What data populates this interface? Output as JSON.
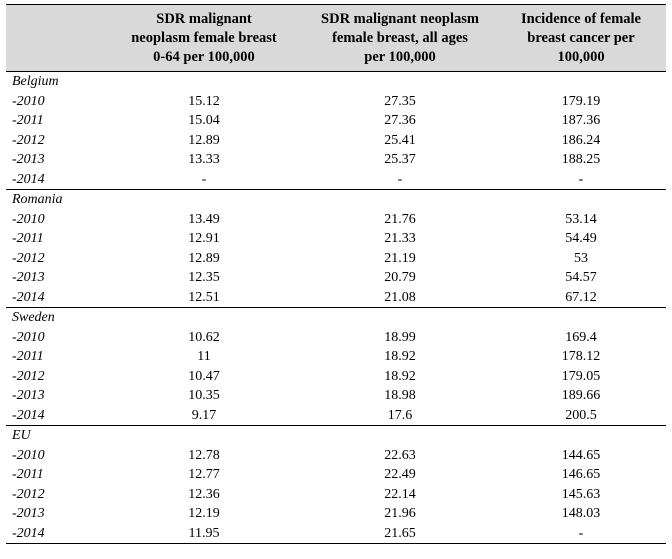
{
  "table": {
    "headers": [
      "",
      "SDR malignant neoplasm female breast 0-64 per 100,000",
      "SDR malignant neoplasm female breast, all ages per 100,000",
      "Incidence of female breast cancer per 100,000"
    ],
    "header_lines": [
      [
        "SDR malignant",
        "neoplasm female breast",
        "0-64 per 100,000"
      ],
      [
        "SDR malignant neoplasm",
        "female breast, all ages",
        "per 100,000"
      ],
      [
        "Incidence of female",
        "breast cancer per",
        "100,000"
      ]
    ],
    "groups": [
      {
        "country": "Belgium",
        "rows": [
          {
            "year": "-2010",
            "values": [
              "15.12",
              "27.35",
              "179.19"
            ]
          },
          {
            "year": "-2011",
            "values": [
              "15.04",
              "27.36",
              "187.36"
            ]
          },
          {
            "year": "-2012",
            "values": [
              "12.89",
              "25.41",
              "186.24"
            ]
          },
          {
            "year": "-2013",
            "values": [
              "13.33",
              "25.37",
              "188.25"
            ]
          },
          {
            "year": "-2014",
            "values": [
              "-",
              "-",
              "-"
            ]
          }
        ]
      },
      {
        "country": "Romania",
        "rows": [
          {
            "year": "-2010",
            "values": [
              "13.49",
              "21.76",
              "53.14"
            ]
          },
          {
            "year": "-2011",
            "values": [
              "12.91",
              "21.33",
              "54.49"
            ]
          },
          {
            "year": "-2012",
            "values": [
              "12.89",
              "21.19",
              "53"
            ]
          },
          {
            "year": "-2013",
            "values": [
              "12.35",
              "20.79",
              "54.57"
            ]
          },
          {
            "year": "-2014",
            "values": [
              "12.51",
              "21.08",
              "67.12"
            ]
          }
        ]
      },
      {
        "country": "Sweden",
        "rows": [
          {
            "year": "-2010",
            "values": [
              "10.62",
              "18.99",
              "169.4"
            ]
          },
          {
            "year": "-2011",
            "values": [
              "11",
              "18.92",
              "178.12"
            ]
          },
          {
            "year": "-2012",
            "values": [
              "10.47",
              "18.92",
              "179.05"
            ]
          },
          {
            "year": "-2013",
            "values": [
              "10.35",
              "18.98",
              "189.66"
            ]
          },
          {
            "year": "-2014",
            "values": [
              "9.17",
              "17.6",
              "200.5"
            ]
          }
        ]
      },
      {
        "country": "EU",
        "rows": [
          {
            "year": "-2010",
            "values": [
              "12.78",
              "22.63",
              "144.65"
            ]
          },
          {
            "year": "-2011",
            "values": [
              "12.77",
              "22.49",
              "146.65"
            ]
          },
          {
            "year": "-2012",
            "values": [
              "12.36",
              "22.14",
              "145.63"
            ]
          },
          {
            "year": "-2013",
            "values": [
              "12.19",
              "21.96",
              "148.03"
            ]
          },
          {
            "year": "-2014",
            "values": [
              "11.95",
              "21.65",
              "-"
            ]
          }
        ]
      }
    ]
  }
}
